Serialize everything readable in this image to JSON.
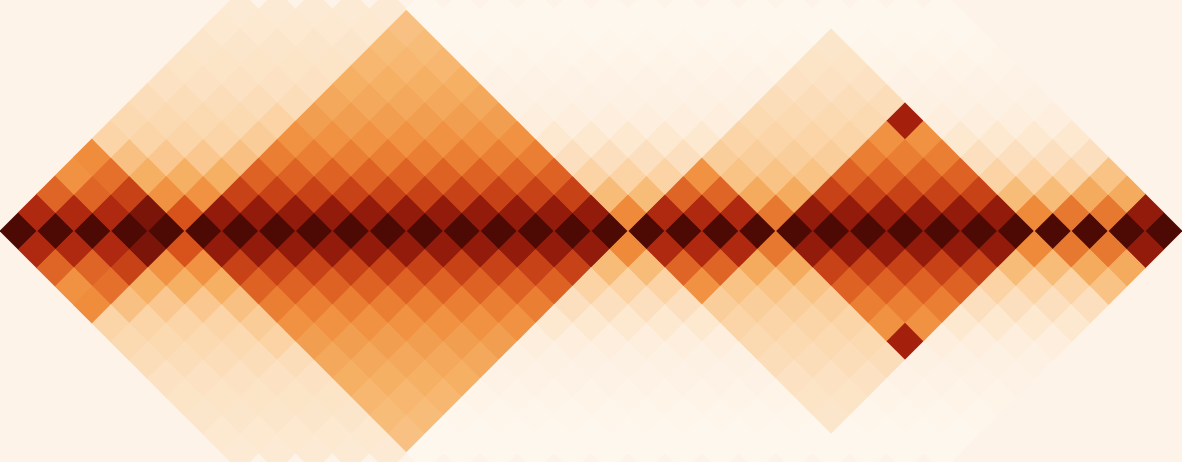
{
  "chart_data": {
    "type": "heatmap",
    "xlim": [
      0,
      32
    ],
    "ylim": [
      -12.5,
      12.5
    ],
    "tick_labels": false,
    "grid": false,
    "color_range": [
      0,
      100
    ],
    "matrix_diagonals": [
      [
        100,
        100,
        100,
        100,
        100,
        100,
        100,
        100,
        100,
        100,
        100,
        100,
        100,
        100,
        100,
        100,
        100,
        100,
        100,
        100,
        100,
        100,
        100,
        100,
        100,
        100,
        100,
        100,
        100,
        100,
        100,
        100
      ],
      [
        82,
        82,
        82,
        92,
        70,
        88,
        88,
        88,
        88,
        88,
        88,
        88,
        88,
        88,
        88,
        88,
        55,
        82,
        82,
        82,
        60,
        88,
        88,
        88,
        88,
        88,
        88,
        55,
        60,
        60,
        88
      ],
      [
        65,
        65,
        75,
        52,
        52,
        75,
        75,
        75,
        75,
        75,
        75,
        75,
        75,
        75,
        75,
        35,
        35,
        65,
        65,
        42,
        42,
        75,
        75,
        75,
        75,
        75,
        35,
        35,
        42,
        42
      ],
      [
        52,
        62,
        40,
        40,
        40,
        66,
        66,
        66,
        66,
        66,
        66,
        66,
        66,
        66,
        25,
        25,
        25,
        52,
        32,
        32,
        32,
        66,
        66,
        66,
        66,
        25,
        25,
        25,
        32
      ],
      [
        54,
        33,
        30,
        30,
        33,
        58,
        58,
        58,
        58,
        58,
        58,
        58,
        58,
        19,
        19,
        19,
        19,
        27,
        27,
        27,
        27,
        58,
        58,
        58,
        19,
        19,
        19,
        19
      ],
      [
        24,
        24,
        24,
        24,
        28,
        52,
        52,
        52,
        52,
        52,
        52,
        52,
        15,
        15,
        15,
        15,
        15,
        24,
        24,
        24,
        24,
        52,
        52,
        15,
        15,
        15,
        15
      ],
      [
        22,
        22,
        22,
        22,
        25,
        47,
        47,
        47,
        47,
        47,
        47,
        12,
        12,
        12,
        12,
        12,
        12,
        22,
        22,
        22,
        22,
        85,
        12,
        12,
        12,
        12
      ],
      [
        20,
        20,
        20,
        20,
        20,
        43,
        43,
        43,
        43,
        43,
        10,
        10,
        10,
        10,
        10,
        10,
        10,
        20,
        20,
        20,
        20,
        10,
        10,
        10,
        10
      ],
      [
        18,
        18,
        18,
        18,
        18,
        40,
        40,
        40,
        40,
        9,
        9,
        9,
        9,
        9,
        9,
        9,
        9,
        18,
        18,
        18,
        9,
        9,
        9,
        9
      ],
      [
        17,
        17,
        17,
        17,
        17,
        37,
        37,
        37,
        8,
        8,
        8,
        8,
        8,
        8,
        8,
        8,
        8,
        17,
        17,
        8,
        8,
        8,
        8
      ],
      [
        16,
        16,
        16,
        16,
        16,
        35,
        35,
        7,
        7,
        7,
        7,
        7,
        7,
        7,
        7,
        7,
        7,
        16,
        7,
        7,
        7,
        7
      ],
      [
        15,
        15,
        15,
        15,
        15,
        33,
        6,
        6,
        6,
        6,
        6,
        6,
        6,
        6,
        6,
        6,
        6,
        6,
        6,
        6,
        6
      ],
      [
        14,
        14,
        14,
        14,
        14,
        6,
        6,
        6,
        6,
        6,
        6,
        6,
        6,
        6,
        6,
        6,
        6,
        6,
        6,
        6
      ]
    ]
  }
}
